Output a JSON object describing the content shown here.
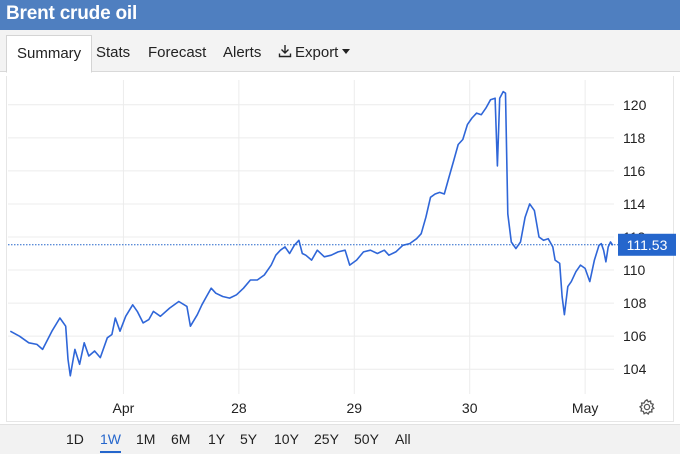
{
  "window": {
    "title": "Brent crude oil"
  },
  "tabs": [
    {
      "label": "Summary",
      "active": true
    },
    {
      "label": "Stats"
    },
    {
      "label": "Forecast"
    },
    {
      "label": "Alerts"
    },
    {
      "label": "Export",
      "icon": "download-icon"
    }
  ],
  "ranges": [
    {
      "label": "1D"
    },
    {
      "label": "1W",
      "active": true
    },
    {
      "label": "1M"
    },
    {
      "label": "6M"
    },
    {
      "label": "1Y"
    },
    {
      "label": "5Y"
    },
    {
      "label": "10Y"
    },
    {
      "label": "25Y"
    },
    {
      "label": "50Y"
    },
    {
      "label": "All"
    }
  ],
  "colors": {
    "accent": "#2566cc",
    "line": "#2f66d8",
    "header": "#4f7fc0"
  },
  "chart_data": {
    "type": "line",
    "current_value": "111.53",
    "y_ticks": [
      "104",
      "106",
      "108",
      "110",
      "112",
      "114",
      "116",
      "118",
      "120"
    ],
    "x_ticks": [
      {
        "label": "Apr",
        "t": 1.0
      },
      {
        "label": "28",
        "t": 2.0
      },
      {
        "label": "29",
        "t": 3.0
      },
      {
        "label": "30",
        "t": 4.0
      },
      {
        "label": "May",
        "t": 5.0
      }
    ],
    "x_range": [
      0.0,
      5.25
    ],
    "ylim": [
      102.5,
      121.5
    ],
    "grid": true,
    "series": [
      {
        "points": [
          [
            0.02,
            106.3
          ],
          [
            0.1,
            106.0
          ],
          [
            0.18,
            105.6
          ],
          [
            0.25,
            105.5
          ],
          [
            0.3,
            105.2
          ],
          [
            0.38,
            106.3
          ],
          [
            0.45,
            107.1
          ],
          [
            0.5,
            106.6
          ],
          [
            0.52,
            104.6
          ],
          [
            0.54,
            103.6
          ],
          [
            0.58,
            105.2
          ],
          [
            0.62,
            104.3
          ],
          [
            0.66,
            105.6
          ],
          [
            0.7,
            104.8
          ],
          [
            0.75,
            105.1
          ],
          [
            0.8,
            104.7
          ],
          [
            0.86,
            105.9
          ],
          [
            0.9,
            106.1
          ],
          [
            0.93,
            107.1
          ],
          [
            0.97,
            106.3
          ],
          [
            1.02,
            107.2
          ],
          [
            1.08,
            107.9
          ],
          [
            1.12,
            107.5
          ],
          [
            1.17,
            106.8
          ],
          [
            1.22,
            107.0
          ],
          [
            1.26,
            107.5
          ],
          [
            1.32,
            107.2
          ],
          [
            1.4,
            107.7
          ],
          [
            1.48,
            108.1
          ],
          [
            1.55,
            107.8
          ],
          [
            1.58,
            106.6
          ],
          [
            1.64,
            107.3
          ],
          [
            1.68,
            107.9
          ],
          [
            1.72,
            108.4
          ],
          [
            1.76,
            108.9
          ],
          [
            1.8,
            108.6
          ],
          [
            1.86,
            108.4
          ],
          [
            1.92,
            108.3
          ],
          [
            1.98,
            108.5
          ],
          [
            2.04,
            108.9
          ],
          [
            2.1,
            109.4
          ],
          [
            2.16,
            109.4
          ],
          [
            2.22,
            109.7
          ],
          [
            2.28,
            110.3
          ],
          [
            2.32,
            110.9
          ],
          [
            2.36,
            111.2
          ],
          [
            2.4,
            111.4
          ],
          [
            2.44,
            111.0
          ],
          [
            2.48,
            111.5
          ],
          [
            2.52,
            111.8
          ],
          [
            2.55,
            111.0
          ],
          [
            2.58,
            110.9
          ],
          [
            2.63,
            110.6
          ],
          [
            2.68,
            111.2
          ],
          [
            2.74,
            110.8
          ],
          [
            2.8,
            110.9
          ],
          [
            2.86,
            111.1
          ],
          [
            2.92,
            111.2
          ],
          [
            2.96,
            110.3
          ],
          [
            3.02,
            110.6
          ],
          [
            3.08,
            111.1
          ],
          [
            3.14,
            111.2
          ],
          [
            3.2,
            111.0
          ],
          [
            3.26,
            111.2
          ],
          [
            3.3,
            110.9
          ],
          [
            3.36,
            111.1
          ],
          [
            3.42,
            111.5
          ],
          [
            3.48,
            111.6
          ],
          [
            3.54,
            111.9
          ],
          [
            3.58,
            112.2
          ],
          [
            3.62,
            113.2
          ],
          [
            3.66,
            114.4
          ],
          [
            3.7,
            114.6
          ],
          [
            3.74,
            114.7
          ],
          [
            3.78,
            114.6
          ],
          [
            3.82,
            115.6
          ],
          [
            3.86,
            116.6
          ],
          [
            3.9,
            117.6
          ],
          [
            3.94,
            117.9
          ],
          [
            3.98,
            118.8
          ],
          [
            4.02,
            119.2
          ],
          [
            4.06,
            119.5
          ],
          [
            4.1,
            119.4
          ],
          [
            4.14,
            119.8
          ],
          [
            4.18,
            120.3
          ],
          [
            4.22,
            120.4
          ],
          [
            4.24,
            116.3
          ],
          [
            4.26,
            120.4
          ],
          [
            4.29,
            120.8
          ],
          [
            4.31,
            120.7
          ],
          [
            4.33,
            113.4
          ],
          [
            4.36,
            111.7
          ],
          [
            4.4,
            111.3
          ],
          [
            4.44,
            111.7
          ],
          [
            4.48,
            113.2
          ],
          [
            4.52,
            114.0
          ],
          [
            4.56,
            113.6
          ],
          [
            4.6,
            112.0
          ],
          [
            4.64,
            111.8
          ],
          [
            4.68,
            111.9
          ],
          [
            4.72,
            111.4
          ],
          [
            4.74,
            110.6
          ],
          [
            4.78,
            110.4
          ],
          [
            4.8,
            108.4
          ],
          [
            4.82,
            107.3
          ],
          [
            4.85,
            109.0
          ],
          [
            4.88,
            109.3
          ],
          [
            4.92,
            109.9
          ],
          [
            4.96,
            110.3
          ],
          [
            5.0,
            110.1
          ],
          [
            5.04,
            109.3
          ],
          [
            5.08,
            110.6
          ],
          [
            5.12,
            111.5
          ],
          [
            5.14,
            111.6
          ],
          [
            5.16,
            111.2
          ],
          [
            5.18,
            110.5
          ],
          [
            5.2,
            111.4
          ],
          [
            5.22,
            111.7
          ],
          [
            5.24,
            111.5
          ]
        ]
      }
    ]
  }
}
